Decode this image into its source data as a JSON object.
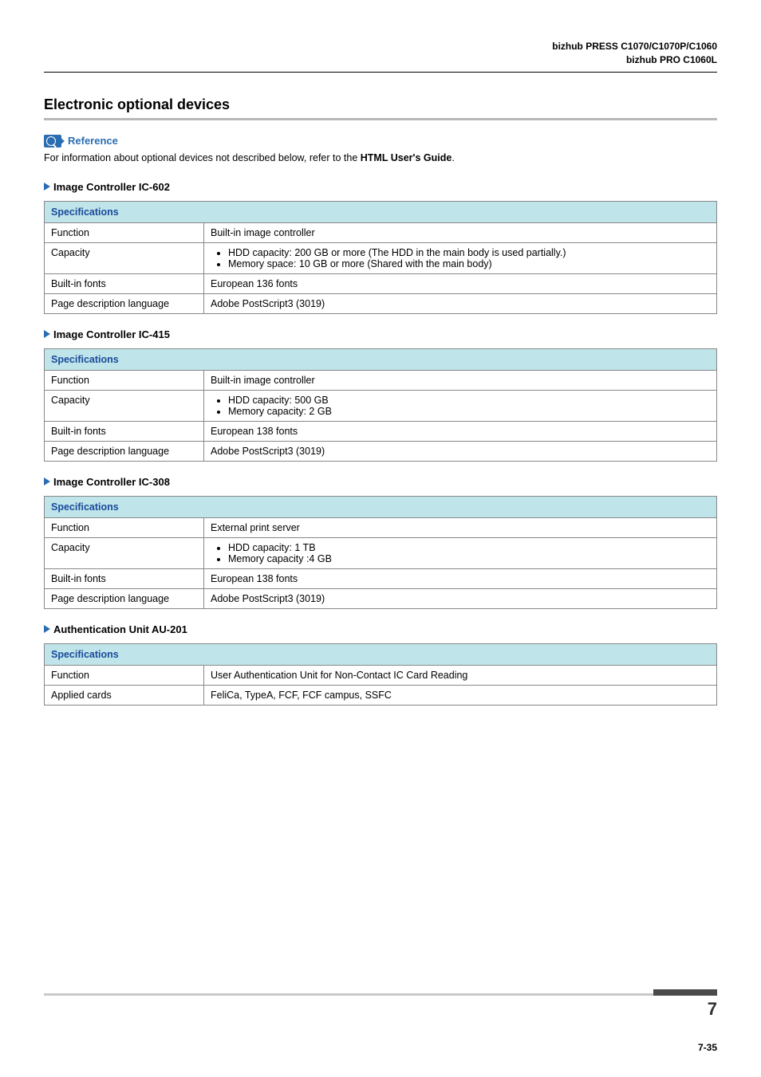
{
  "header": {
    "line1": "bizhub PRESS C1070/C1070P/C1060",
    "line2": "bizhub PRO C1060L"
  },
  "section_title": "Electronic optional devices",
  "reference": {
    "label": "Reference",
    "text_before": "For information about optional devices not described below, refer to the ",
    "text_bold": "HTML User's Guide",
    "text_after": "."
  },
  "tables": [
    {
      "heading": "Image Controller IC-602",
      "header": "Specifications",
      "rows": [
        {
          "key": "Function",
          "type": "text",
          "value": "Built-in image controller"
        },
        {
          "key": "Capacity",
          "type": "list",
          "items": [
            "HDD capacity: 200 GB or more (The HDD in the main body is used partially.)",
            "Memory space: 10 GB or more (Shared with the main body)"
          ]
        },
        {
          "key": "Built-in fonts",
          "type": "text",
          "value": "European 136 fonts"
        },
        {
          "key": "Page description language",
          "type": "text",
          "value": "Adobe PostScript3 (3019)"
        }
      ]
    },
    {
      "heading": "Image Controller IC-415",
      "header": "Specifications",
      "rows": [
        {
          "key": "Function",
          "type": "text",
          "value": "Built-in image controller"
        },
        {
          "key": "Capacity",
          "type": "list",
          "items": [
            "HDD capacity: 500 GB",
            "Memory capacity: 2 GB"
          ]
        },
        {
          "key": "Built-in fonts",
          "type": "text",
          "value": "European 138 fonts"
        },
        {
          "key": "Page description language",
          "type": "text",
          "value": "Adobe PostScript3 (3019)"
        }
      ]
    },
    {
      "heading": "Image Controller IC-308",
      "header": "Specifications",
      "rows": [
        {
          "key": "Function",
          "type": "text",
          "value": "External print server"
        },
        {
          "key": "Capacity",
          "type": "list",
          "items": [
            "HDD capacity: 1 TB",
            "Memory capacity :4 GB"
          ]
        },
        {
          "key": "Built-in fonts",
          "type": "text",
          "value": "European 138 fonts"
        },
        {
          "key": "Page description language",
          "type": "text",
          "value": "Adobe PostScript3 (3019)"
        }
      ]
    },
    {
      "heading": "Authentication Unit AU-201",
      "header": "Specifications",
      "rows": [
        {
          "key": "Function",
          "type": "text",
          "value": "User Authentication Unit for Non-Contact IC Card Reading"
        },
        {
          "key": "Applied cards",
          "type": "text",
          "value": "FeliCa, TypeA, FCF, FCF campus, SSFC"
        }
      ]
    }
  ],
  "footer": {
    "chapter": "7",
    "page": "7-35"
  }
}
